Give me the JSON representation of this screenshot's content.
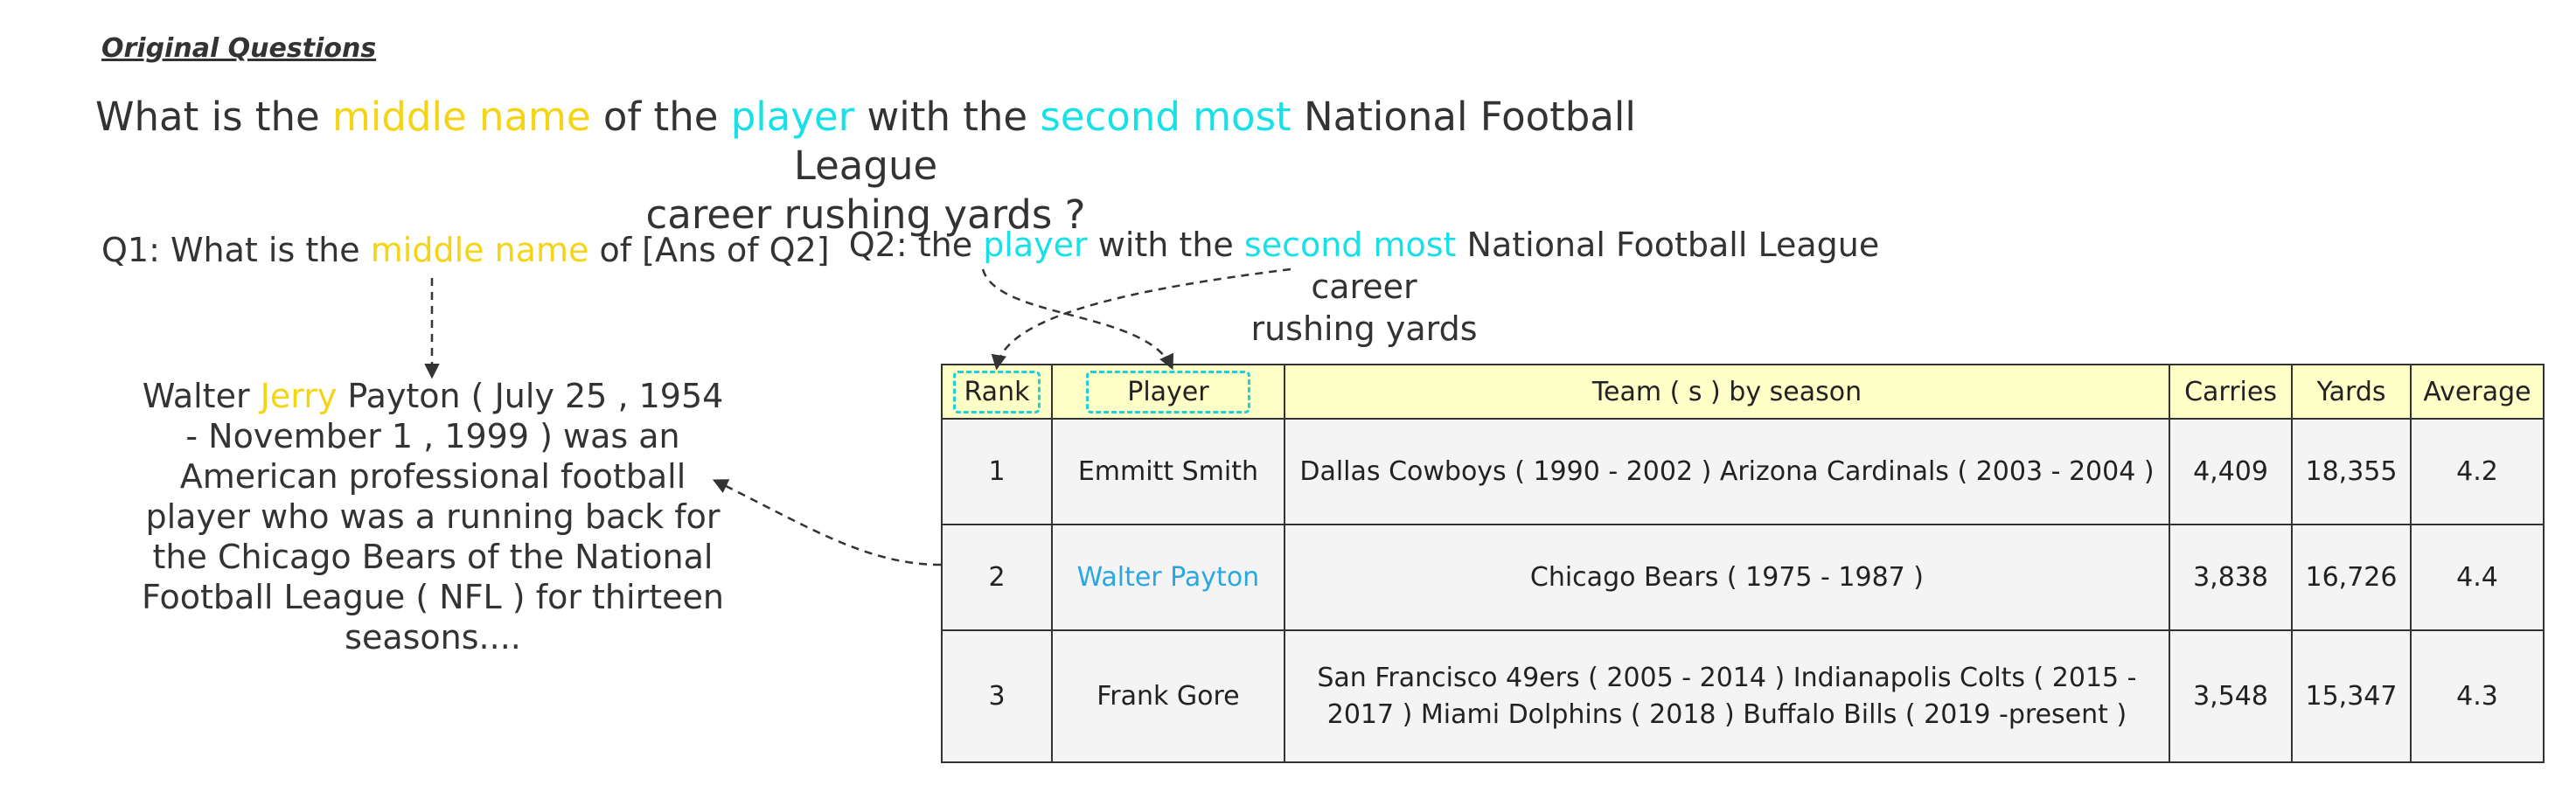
{
  "section_heading": "Original Questions",
  "main_question": {
    "p1": "What is the ",
    "p2": "middle name",
    "p3": " of the ",
    "p4": "player",
    "p5": " with the ",
    "p6": "second most",
    "p7": " National Football League",
    "p8": "career rushing yards ?"
  },
  "q1": {
    "p1": "Q1: What is the ",
    "p2": "middle name",
    "p3": " of [Ans of Q2]"
  },
  "q2": {
    "p1": "Q2: the ",
    "p2": "player",
    "p3": " with the ",
    "p4": "second most",
    "p5": " National Football League career",
    "p6": "rushing yards"
  },
  "passage": {
    "p1": "Walter ",
    "p2": "Jerry",
    "p3": " Payton ( July 25 , 1954 - November 1 , 1999 ) was an American professional football player who was a running back for the Chicago Bears of the National Football League ( NFL ) for thirteen seasons...."
  },
  "table": {
    "headers": [
      "Rank",
      "Player",
      "Team ( s ) by season",
      "Carries",
      "Yards",
      "Average"
    ],
    "rows": [
      [
        "1",
        "Emmitt Smith",
        "Dallas Cowboys ( 1990 - 2002 ) Arizona Cardinals ( 2003 - 2004 )",
        "4,409",
        "18,355",
        "4.2"
      ],
      [
        "2",
        "Walter Payton",
        "Chicago Bears ( 1975 - 1987 )",
        "3,838",
        "16,726",
        "4.4"
      ],
      [
        "3",
        "Frank Gore",
        "San Francisco 49ers ( 2005 - 2014 ) Indianapolis Colts ( 2015 - 2017 ) Miami Dolphins ( 2018 ) Buffalo Bills ( 2019 -present )",
        "3,548",
        "15,347",
        "4.3"
      ]
    ]
  },
  "colors": {
    "middle_name": "#f5d416",
    "player_highlight": "#17e0e8",
    "answer_highlight": "#2aa7df",
    "header_bg": "#ffffc8",
    "body_bg": "#f4f4f4"
  }
}
